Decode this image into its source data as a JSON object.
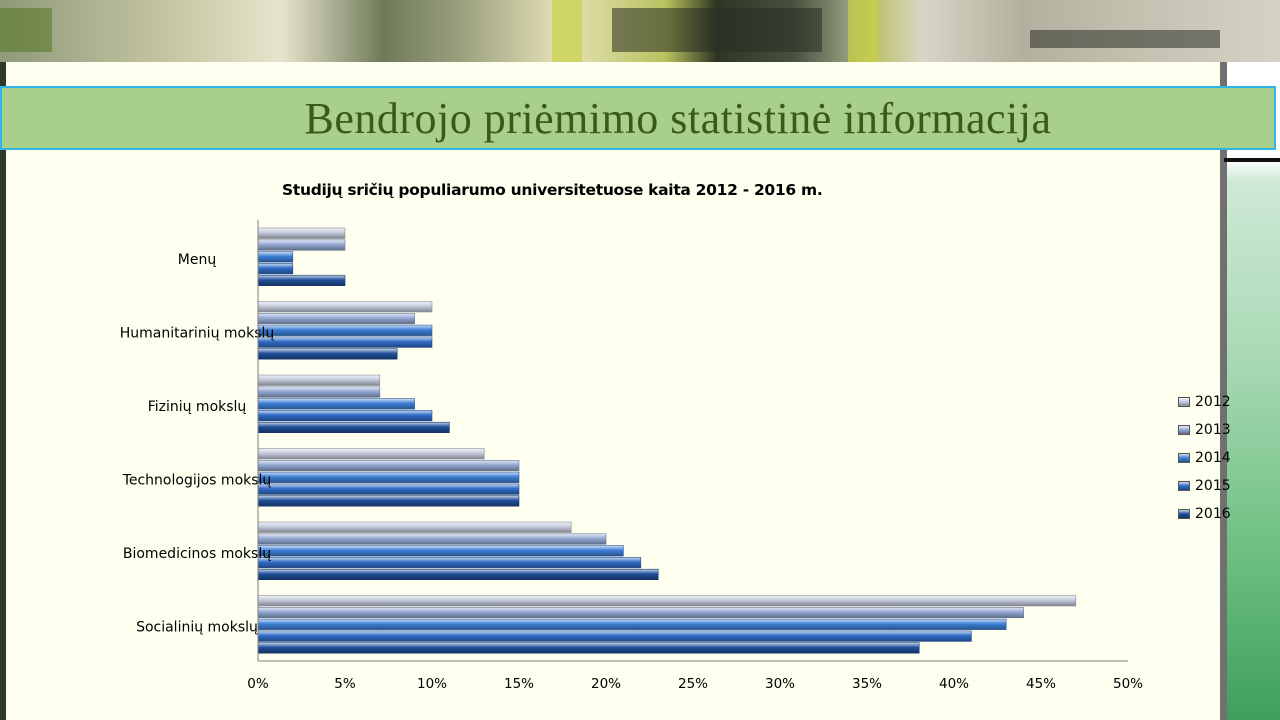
{
  "slide": {
    "title": "Bendrojo priėmimo statistinė informacija"
  },
  "chart_data": {
    "type": "bar",
    "orientation": "horizontal",
    "title": "Studijų sričių populiarumo universitetuose kaita 2012 - 2016 m.",
    "categories": [
      "Menų",
      "Humanitarinių mokslų",
      "Fizinių mokslų",
      "Technologijos mokslų",
      "Biomedicinos mokslų",
      "Socialinių mokslų"
    ],
    "series": [
      {
        "name": "2012",
        "color": "#c3cadb",
        "values": [
          5,
          10,
          7,
          13,
          18,
          47
        ]
      },
      {
        "name": "2013",
        "color": "#93a8d2",
        "values": [
          5,
          9,
          7,
          15,
          20,
          44
        ]
      },
      {
        "name": "2014",
        "color": "#3d7fd6",
        "values": [
          2,
          10,
          9,
          15,
          21,
          43
        ]
      },
      {
        "name": "2015",
        "color": "#2f6bc6",
        "values": [
          2,
          10,
          10,
          15,
          22,
          41
        ]
      },
      {
        "name": "2016",
        "color": "#1f4f9a",
        "values": [
          5,
          8,
          11,
          15,
          23,
          38
        ]
      }
    ],
    "x_ticks": [
      "0%",
      "5%",
      "10%",
      "15%",
      "20%",
      "25%",
      "30%",
      "35%",
      "40%",
      "45%",
      "50%"
    ],
    "xlim": [
      0,
      50
    ],
    "x_unit": "%",
    "grid": false,
    "legend_position": "right"
  }
}
